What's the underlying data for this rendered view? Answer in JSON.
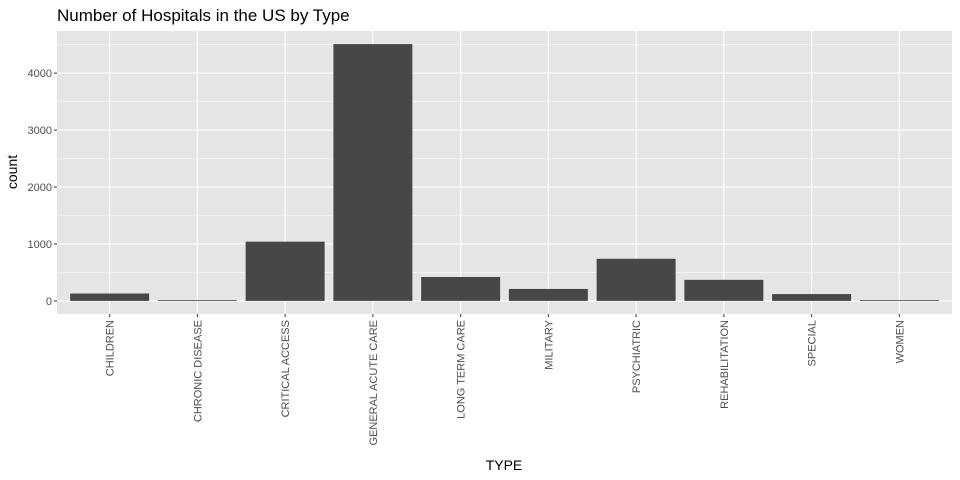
{
  "chart_data": {
    "type": "bar",
    "title": "Number of Hospitals in the US by Type",
    "xlabel": "TYPE",
    "ylabel": "count",
    "categories": [
      "CHILDREN",
      "CHRONIC DISEASE",
      "CRITICAL ACCESS",
      "GENERAL ACUTE CARE",
      "LONG TERM CARE",
      "MILITARY",
      "PSYCHIATRIC",
      "REHABILITATION",
      "SPECIAL",
      "WOMEN"
    ],
    "values": [
      130,
      12,
      1040,
      4510,
      420,
      210,
      740,
      370,
      120,
      14
    ],
    "yticks": [
      0,
      1000,
      2000,
      3000,
      4000
    ],
    "ylim": [
      -230,
      4740
    ],
    "grid": true,
    "colors": {
      "panel": "#e5e5e5",
      "grid_major": "#ffffff",
      "bar": "#474747",
      "tick_label": "#4d4d4d"
    }
  }
}
